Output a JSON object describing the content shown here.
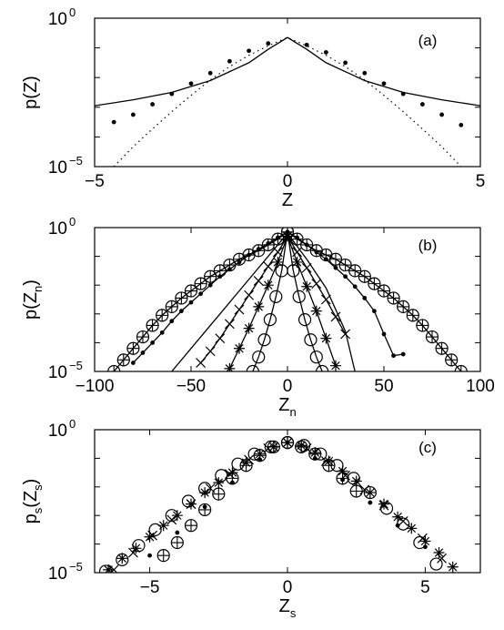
{
  "chart_data": [
    {
      "type": "line",
      "panel_label": "(a)",
      "xlabel": "Z",
      "ylabel": "p(Z)",
      "xlim": [
        -5,
        5
      ],
      "ylim_log10": [
        -5,
        0
      ],
      "xticks": [
        "−5",
        "0",
        "5"
      ],
      "yticks": [
        {
          "base": "10",
          "exp": "0"
        },
        {
          "base": "10",
          "exp": "−5"
        }
      ],
      "yscale": "log",
      "series": [
        {
          "style": "solid",
          "x": [
            -5,
            -4,
            -3,
            -2,
            -1,
            -0.5,
            0,
            0.5,
            1,
            2,
            3,
            4,
            5
          ],
          "log10y": [
            -2.95,
            -2.75,
            -2.5,
            -2.1,
            -1.5,
            -1.05,
            -0.65,
            -1.05,
            -1.5,
            -2.1,
            -2.5,
            -2.75,
            -2.95
          ]
        },
        {
          "style": "dotted",
          "x": [
            -4.5,
            -4,
            -3.5,
            -3,
            -2.5,
            -2,
            -1.5,
            -1,
            -0.5,
            0,
            0.5,
            1,
            1.5,
            2,
            2.5,
            3,
            3.5,
            4,
            4.5
          ],
          "log10y": [
            -5,
            -4.33,
            -3.73,
            -3.15,
            -2.6,
            -2.08,
            -1.63,
            -1.25,
            -0.93,
            -0.65,
            -0.93,
            -1.25,
            -1.63,
            -2.08,
            -2.6,
            -3.15,
            -3.73,
            -4.33,
            -5
          ]
        },
        {
          "style": "dots",
          "x": [
            -4.5,
            -4,
            -3.5,
            -3,
            -2.5,
            -2,
            -1.5,
            -1,
            -0.5,
            0.5,
            1,
            1.5,
            2,
            2.5,
            3,
            3.5,
            4,
            4.5
          ],
          "log10y": [
            -3.5,
            -3.25,
            -2.9,
            -2.55,
            -2.2,
            -1.85,
            -1.45,
            -1.1,
            -0.85,
            -0.9,
            -1.15,
            -1.5,
            -1.85,
            -2.2,
            -2.55,
            -2.9,
            -3.25,
            -3.6
          ]
        }
      ]
    },
    {
      "type": "line",
      "panel_label": "(b)",
      "xlabel": {
        "base": "Z",
        "sub": "n"
      },
      "ylabel": {
        "base": "p(Z",
        "sub": "n",
        "end": ")"
      },
      "xlim": [
        -100,
        100
      ],
      "ylim_log10": [
        -5,
        0
      ],
      "xticks": [
        "−100",
        "−50",
        "0",
        "50",
        "100"
      ],
      "yticks": [
        {
          "base": "10",
          "exp": "0"
        },
        {
          "base": "10",
          "exp": "−5"
        }
      ],
      "yscale": "log",
      "series": [
        {
          "marker": "circleplus",
          "x": [
            -90,
            -85,
            -80,
            -75,
            -70,
            -65,
            -60,
            -55,
            -50,
            -45,
            -40,
            -35,
            -30,
            -25,
            -20,
            -15,
            -10,
            -5,
            0,
            5,
            10,
            15,
            20,
            25,
            30,
            35,
            40,
            45,
            50,
            55,
            60,
            65,
            70,
            75,
            80,
            85,
            90
          ],
          "log10y": [
            -5,
            -4.6,
            -4.2,
            -3.8,
            -3.4,
            -3.05,
            -2.75,
            -2.45,
            -2.2,
            -1.95,
            -1.7,
            -1.5,
            -1.3,
            -1.1,
            -0.95,
            -0.8,
            -0.6,
            -0.4,
            -0.15,
            -0.4,
            -0.6,
            -0.8,
            -0.95,
            -1.1,
            -1.3,
            -1.5,
            -1.7,
            -1.95,
            -2.2,
            -2.45,
            -2.75,
            -3.05,
            -3.4,
            -3.8,
            -4.2,
            -4.6,
            -5
          ]
        },
        {
          "marker": "dot",
          "x": [
            -80,
            -75,
            -70,
            -65,
            -60,
            -55,
            -50,
            -45,
            -40,
            -35,
            -30,
            -25,
            -20,
            -15,
            -10,
            -5,
            0,
            5,
            10,
            15,
            20,
            25,
            30,
            35,
            40,
            45,
            50,
            55,
            60
          ],
          "log10y": [
            -4.7,
            -4.35,
            -4,
            -3.65,
            -3.25,
            -2.9,
            -2.6,
            -2.3,
            -2,
            -1.7,
            -1.45,
            -1.2,
            -0.95,
            -0.75,
            -0.55,
            -0.35,
            -0.15,
            -0.35,
            -0.6,
            -0.85,
            -1.1,
            -1.4,
            -1.7,
            -2.05,
            -2.45,
            -2.9,
            -3.7,
            -4.45,
            -4.4
          ]
        },
        {
          "marker": "x",
          "x": [
            -45,
            -40,
            -35,
            -30,
            -25,
            -20,
            -15,
            -10,
            -5,
            0,
            5,
            10,
            15,
            20,
            25,
            30
          ],
          "log10y": [
            -4.7,
            -4.3,
            -3.85,
            -3.35,
            -2.85,
            -2.35,
            -1.85,
            -1.35,
            -0.85,
            -0.3,
            -0.85,
            -1.4,
            -1.95,
            -2.5,
            -3.1,
            -3.7
          ]
        },
        {
          "marker": "star",
          "x": [
            -30,
            -25,
            -20,
            -15,
            -10,
            -5,
            0,
            5,
            10,
            15,
            20,
            25
          ],
          "log10y": [
            -4.9,
            -4.2,
            -3.5,
            -2.75,
            -2,
            -1.2,
            -0.3,
            -1.2,
            -2.05,
            -2.9,
            -3.85,
            -4.8
          ]
        },
        {
          "marker": "circle",
          "x": [
            -18,
            -15,
            -12,
            -9,
            -6,
            -3,
            0,
            3,
            6,
            9,
            12,
            15,
            18
          ],
          "log10y": [
            -5,
            -4.5,
            -3.9,
            -3.2,
            -2.4,
            -1.5,
            -0.15,
            -1.5,
            -2.4,
            -3.2,
            -3.9,
            -4.5,
            -5
          ]
        },
        {
          "marker": "none",
          "x": [
            -60,
            -50,
            -40,
            -30,
            -20,
            -10,
            0,
            10,
            20,
            30,
            35
          ],
          "log10y": [
            -5,
            -4.2,
            -3.4,
            -2.6,
            -1.8,
            -1,
            -0.2,
            -1.1,
            -2.1,
            -3.6,
            -5
          ]
        }
      ]
    },
    {
      "type": "scatter",
      "panel_label": "(c)",
      "xlabel": {
        "base": "Z",
        "sub": "s"
      },
      "ylabel": {
        "base": "p",
        "sub": "s",
        "mid": "(Z",
        "sub2": "s",
        "end": ")"
      },
      "xlim": [
        -7,
        7
      ],
      "ylim_log10": [
        -5,
        0
      ],
      "xticks": [
        "−5",
        "0",
        "5"
      ],
      "yticks": [
        {
          "base": "10",
          "exp": "0"
        },
        {
          "base": "10",
          "exp": "−5"
        }
      ],
      "yscale": "log",
      "series": [
        {
          "marker": "star",
          "x": [
            -6.5,
            -6,
            -5.5,
            -5,
            -4.5,
            -4,
            -3.5,
            -3,
            -2.5,
            -2,
            -1.5,
            -1,
            -0.5,
            0,
            0.5,
            1,
            1.5,
            2,
            2.5,
            3,
            3.5,
            4,
            4.5,
            5,
            5.5,
            6
          ],
          "log10y": [
            -4.9,
            -4.5,
            -4.15,
            -3.75,
            -3.35,
            -3,
            -2.6,
            -2.2,
            -1.85,
            -1.5,
            -1.15,
            -0.85,
            -0.6,
            -0.45,
            -0.55,
            -0.8,
            -1.1,
            -1.45,
            -1.8,
            -2.2,
            -2.6,
            -3.05,
            -3.45,
            -3.9,
            -4.3,
            -4.8
          ]
        },
        {
          "marker": "x",
          "x": [
            -6.3,
            -5.6,
            -4.9,
            -4.2,
            -3.5,
            -2.8,
            -2.1,
            -1.4,
            -0.7,
            0,
            0.7,
            1.4,
            2.1,
            2.8,
            3.5,
            4.2,
            4.9,
            5.6
          ],
          "log10y": [
            -4.9,
            -4.3,
            -3.7,
            -3.15,
            -2.6,
            -2.05,
            -1.55,
            -1.05,
            -0.65,
            -0.45,
            -0.65,
            -1.1,
            -1.6,
            -2.1,
            -2.65,
            -3.2,
            -3.8,
            -4.5
          ]
        },
        {
          "marker": "circle",
          "x": [
            -6.6,
            -6,
            -5.4,
            -4.8,
            -4.2,
            -3.6,
            -3,
            -2.4,
            -1.8,
            -1.2,
            -0.6,
            0,
            0.6,
            1.2,
            1.8,
            2.4,
            3,
            3.6,
            4.2,
            4.8,
            5.4
          ],
          "log10y": [
            -4.95,
            -4.55,
            -4.05,
            -3.5,
            -3,
            -2.5,
            -2.05,
            -1.6,
            -1.2,
            -0.85,
            -0.6,
            -0.45,
            -0.55,
            -0.85,
            -1.25,
            -1.7,
            -2.2,
            -2.75,
            -3.3,
            -3.95,
            -4.7
          ]
        },
        {
          "marker": "circleplus",
          "x": [
            -4.5,
            -4,
            -3.5,
            -3,
            -2.5,
            -2,
            -1.5,
            -1,
            -0.5,
            0,
            0.5,
            1,
            1.5,
            2,
            2.5
          ],
          "log10y": [
            -4.4,
            -3.95,
            -3.35,
            -2.8,
            -2.25,
            -1.7,
            -1.25,
            -0.9,
            -0.6,
            -0.45,
            -0.6,
            -0.85,
            -1.25,
            -1.7,
            -2.15
          ]
        },
        {
          "marker": "dot",
          "x": [
            -5,
            -4,
            -3,
            -2,
            -1,
            0,
            1,
            2,
            3,
            4,
            5
          ],
          "log10y": [
            -4.4,
            -3.6,
            -2.7,
            -1.85,
            -1.05,
            -0.45,
            -1,
            -1.75,
            -2.55,
            -3.35,
            -4.1
          ]
        }
      ]
    }
  ]
}
